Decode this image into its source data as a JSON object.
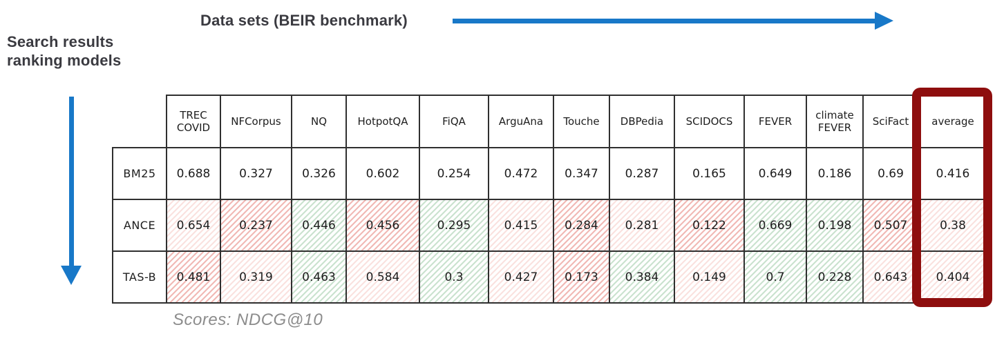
{
  "labels": {
    "datasets_axis": "Data sets (BEIR benchmark)",
    "models_axis_line1": "Search results",
    "models_axis_line2": "ranking models",
    "caption": "Scores: NDCG@10"
  },
  "colors": {
    "arrow_blue": "#1878c8",
    "highlight_red": "#8e0e0e",
    "hatch_red": "#de584e",
    "hatch_green": "#50a05f"
  },
  "chart_data": {
    "type": "table",
    "score_metric": "NDCG@10",
    "highlighted_column": "average",
    "columns": [
      "TREC COVID",
      "NFCorpus",
      "NQ",
      "HotpotQA",
      "FiQA",
      "ArguAna",
      "Touche",
      "DBPedia",
      "SCIDOCS",
      "FEVER",
      "climate FEVER",
      "SciFact",
      "average"
    ],
    "rows": [
      {
        "model": "BM25",
        "values": [
          0.688,
          0.327,
          0.326,
          0.602,
          0.254,
          0.472,
          0.347,
          0.287,
          0.165,
          0.649,
          0.186,
          0.69,
          0.416
        ],
        "shades": [
          "none",
          "none",
          "none",
          "none",
          "none",
          "none",
          "none",
          "none",
          "none",
          "none",
          "none",
          "none",
          "none"
        ]
      },
      {
        "model": "ANCE",
        "values": [
          0.654,
          0.237,
          0.446,
          0.456,
          0.295,
          0.415,
          0.284,
          0.281,
          0.122,
          0.669,
          0.198,
          0.507,
          0.38
        ],
        "shades": [
          "red-light",
          "red",
          "green",
          "red",
          "green",
          "red-light",
          "red",
          "red-light",
          "red",
          "green",
          "green",
          "red",
          "red-light"
        ]
      },
      {
        "model": "TAS-B",
        "values": [
          0.481,
          0.319,
          0.463,
          0.584,
          0.3,
          0.427,
          0.173,
          0.384,
          0.149,
          0.7,
          0.228,
          0.643,
          0.404
        ],
        "shades": [
          "red",
          "red-light",
          "green",
          "red-light",
          "green",
          "red-light",
          "red",
          "green",
          "red-light",
          "green",
          "green",
          "red-light",
          "red-light"
        ]
      }
    ]
  }
}
